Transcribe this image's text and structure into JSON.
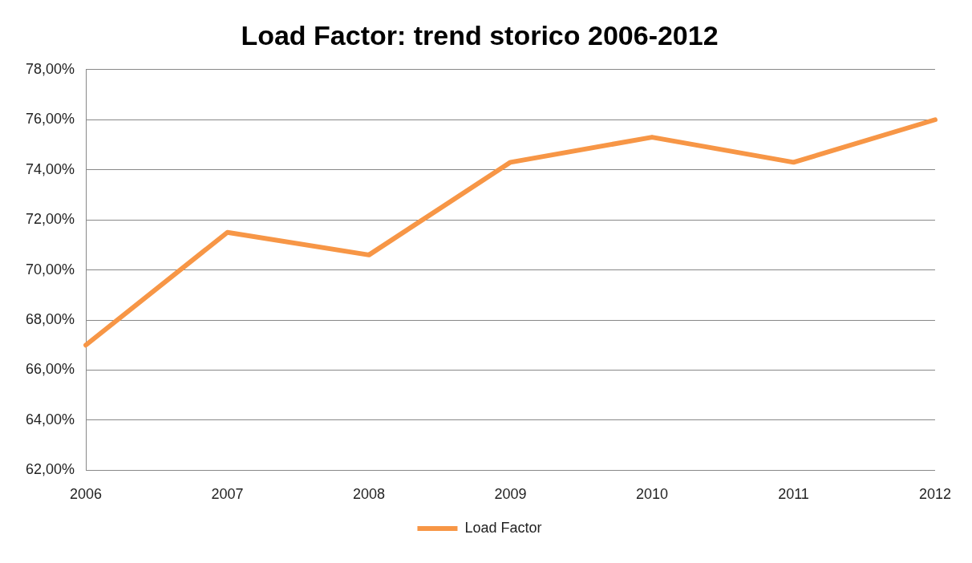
{
  "chart_data": {
    "type": "line",
    "title": "Load Factor: trend storico 2006-2012",
    "categories": [
      "2006",
      "2007",
      "2008",
      "2009",
      "2010",
      "2011",
      "2012"
    ],
    "series": [
      {
        "name": "Load Factor",
        "color": "#f79646",
        "values": [
          67.0,
          71.5,
          70.6,
          74.3,
          75.3,
          74.3,
          76.0
        ]
      }
    ],
    "ylim": [
      62,
      78
    ],
    "yticks": [
      {
        "value": 62,
        "label": "62,00%"
      },
      {
        "value": 64,
        "label": "64,00%"
      },
      {
        "value": 66,
        "label": "66,00%"
      },
      {
        "value": 68,
        "label": "68,00%"
      },
      {
        "value": 70,
        "label": "70,00%"
      },
      {
        "value": 72,
        "label": "72,00%"
      },
      {
        "value": 74,
        "label": "74,00%"
      },
      {
        "value": 76,
        "label": "76,00%"
      },
      {
        "value": 78,
        "label": "78,00%"
      }
    ],
    "grid": "y",
    "legend": "bottom",
    "marker": "none",
    "line_style": "solid"
  }
}
